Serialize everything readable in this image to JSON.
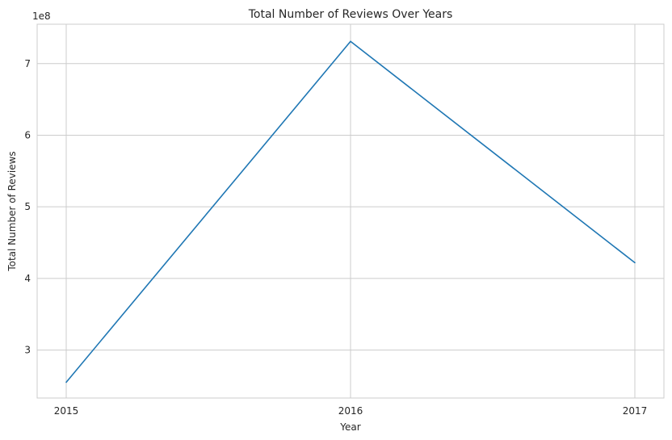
{
  "chart_data": {
    "type": "line",
    "title": "Total Number of Reviews Over Years",
    "xlabel": "Year",
    "ylabel": "Total Number of Reviews",
    "offset_label": "1e8",
    "x": [
      "2015",
      "2016",
      "2017"
    ],
    "series": [
      {
        "values": [
          2.55,
          7.31,
          4.22
        ],
        "color": "#1f77b4"
      }
    ],
    "yticks": [
      3,
      4,
      5,
      6,
      7
    ],
    "ylim": [
      2.33,
      7.55
    ],
    "grid": true
  }
}
